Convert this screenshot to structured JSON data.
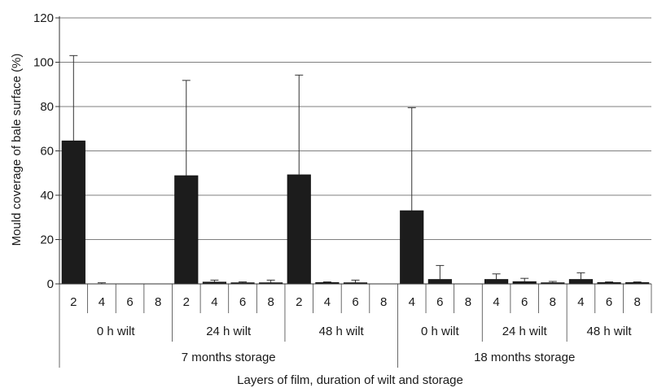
{
  "chart_data": {
    "type": "bar",
    "ylabel": "Mould coverage of bale surface (%)",
    "xlabel": "Layers of film, duration of wilt and storage",
    "ylim": [
      0,
      120
    ],
    "yticks": [
      0,
      20,
      40,
      60,
      80,
      100,
      120
    ],
    "grid": true,
    "bar_color": "#1c1c1c",
    "bars": [
      {
        "layers": "2",
        "wilt": "0 h wilt",
        "storage": "7 months storage",
        "value": 64.5,
        "error": 38.5
      },
      {
        "layers": "4",
        "wilt": "0 h wilt",
        "storage": "7 months storage",
        "value": 0,
        "error": 0.5
      },
      {
        "layers": "6",
        "wilt": "0 h wilt",
        "storage": "7 months storage",
        "value": 0,
        "error": 0
      },
      {
        "layers": "8",
        "wilt": "0 h wilt",
        "storage": "7 months storage",
        "value": 0,
        "error": 0
      },
      {
        "layers": "2",
        "wilt": "24 h wilt",
        "storage": "7 months storage",
        "value": 48.8,
        "error": 43
      },
      {
        "layers": "4",
        "wilt": "24 h wilt",
        "storage": "7 months storage",
        "value": 0.8,
        "error": 0.9
      },
      {
        "layers": "6",
        "wilt": "24 h wilt",
        "storage": "7 months storage",
        "value": 0.5,
        "error": 0.4
      },
      {
        "layers": "8",
        "wilt": "24 h wilt",
        "storage": "7 months storage",
        "value": 0.5,
        "error": 1.2
      },
      {
        "layers": "2",
        "wilt": "48 h wilt",
        "storage": "7 months storage",
        "value": 49.2,
        "error": 45
      },
      {
        "layers": "4",
        "wilt": "48 h wilt",
        "storage": "7 months storage",
        "value": 0.6,
        "error": 0.3
      },
      {
        "layers": "6",
        "wilt": "48 h wilt",
        "storage": "7 months storage",
        "value": 0.5,
        "error": 1.2
      },
      {
        "layers": "8",
        "wilt": "48 h wilt",
        "storage": "7 months storage",
        "value": 0,
        "error": 0
      },
      {
        "layers": "4",
        "wilt": "0 h wilt",
        "storage": "18 months storage",
        "value": 33,
        "error": 46.5
      },
      {
        "layers": "6",
        "wilt": "0 h wilt",
        "storage": "18 months storage",
        "value": 2,
        "error": 6.3
      },
      {
        "layers": "8",
        "wilt": "0 h wilt",
        "storage": "18 months storage",
        "value": 0,
        "error": 0
      },
      {
        "layers": "4",
        "wilt": "24 h wilt",
        "storage": "18 months storage",
        "value": 2,
        "error": 2.5
      },
      {
        "layers": "6",
        "wilt": "24 h wilt",
        "storage": "18 months storage",
        "value": 1,
        "error": 1.5
      },
      {
        "layers": "8",
        "wilt": "24 h wilt",
        "storage": "18 months storage",
        "value": 0.5,
        "error": 0.6
      },
      {
        "layers": "4",
        "wilt": "48 h wilt",
        "storage": "18 months storage",
        "value": 2,
        "error": 3
      },
      {
        "layers": "6",
        "wilt": "48 h wilt",
        "storage": "18 months storage",
        "value": 0.6,
        "error": 0.3
      },
      {
        "layers": "8",
        "wilt": "48 h wilt",
        "storage": "18 months storage",
        "value": 0.6,
        "error": 0.3
      }
    ],
    "wilt_groups": [
      {
        "label": "0 h wilt",
        "start": 0,
        "count": 4
      },
      {
        "label": "24 h wilt",
        "start": 4,
        "count": 4
      },
      {
        "label": "48 h wilt",
        "start": 8,
        "count": 4
      },
      {
        "label": "0 h wilt",
        "start": 12,
        "count": 3
      },
      {
        "label": "24 h wilt",
        "start": 15,
        "count": 3
      },
      {
        "label": "48 h wilt",
        "start": 18,
        "count": 3
      }
    ],
    "storage_groups": [
      {
        "label": "7 months storage",
        "start": 0,
        "count": 12
      },
      {
        "label": "18 months storage",
        "start": 12,
        "count": 9
      }
    ]
  }
}
